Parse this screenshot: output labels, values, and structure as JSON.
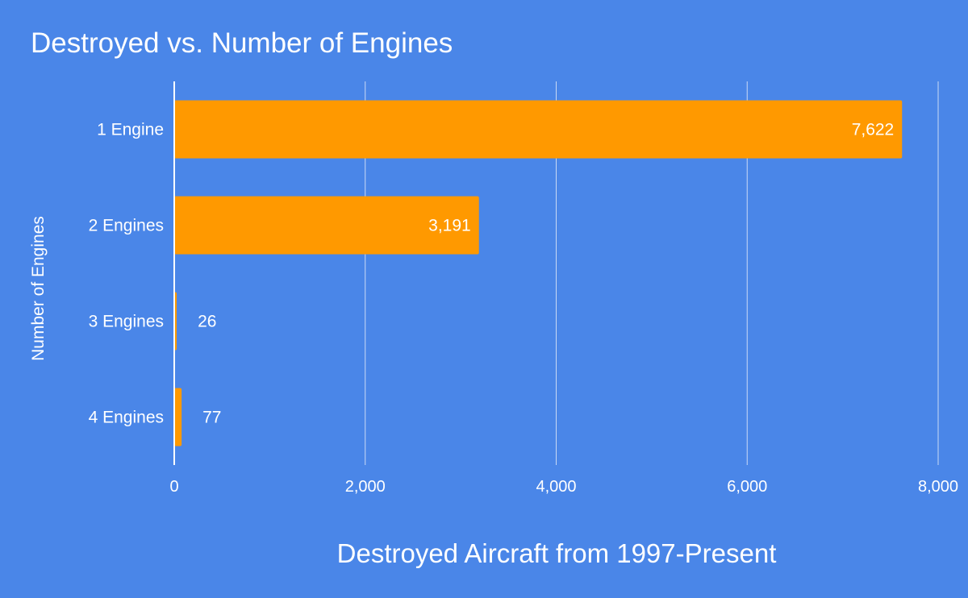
{
  "colors": {
    "background": "#4a86e8",
    "bar": "#ff9900",
    "text": "#ffffff",
    "gridline": "#c9d9f5",
    "axis_line": "#ffffff"
  },
  "chart_data": {
    "type": "bar",
    "orientation": "horizontal",
    "title": "Destroyed vs. Number of Engines",
    "xlabel": "Destroyed Aircraft from 1997-Present",
    "ylabel": "Number of Engines",
    "categories": [
      "1 Engine",
      "2 Engines",
      "3 Engines",
      "4 Engines"
    ],
    "values": [
      7622,
      3191,
      26,
      77
    ],
    "data_labels": [
      "7,622",
      "3,191",
      "26",
      "77"
    ],
    "xlim": [
      0,
      8000
    ],
    "xticks": [
      0,
      2000,
      4000,
      6000,
      8000
    ],
    "xtick_labels": [
      "0",
      "2,000",
      "4,000",
      "6,000",
      "8,000"
    ],
    "grid": true,
    "legend": "none"
  }
}
